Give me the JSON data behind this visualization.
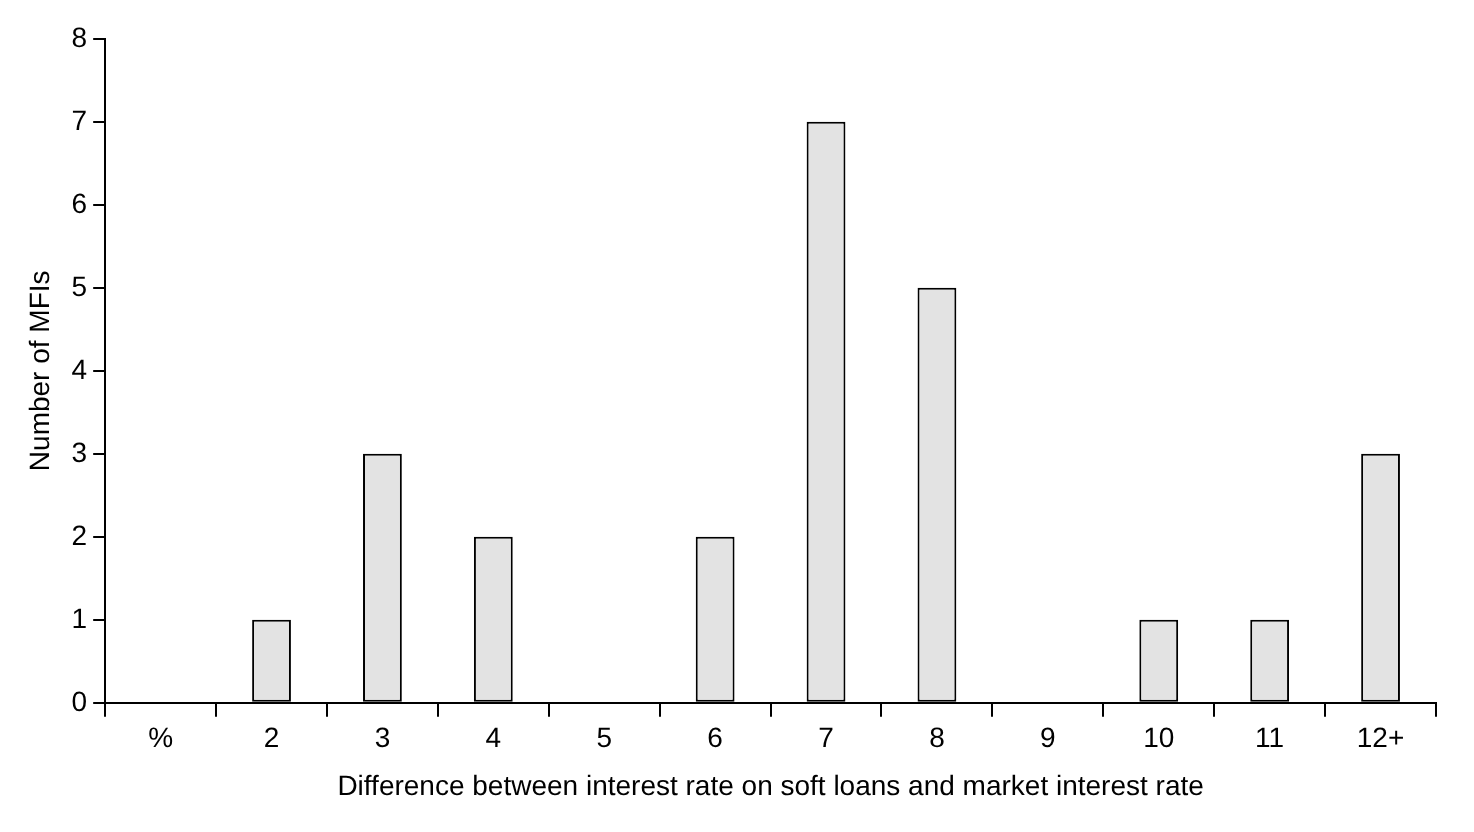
{
  "chart_data": {
    "type": "bar",
    "xlabel": "Difference between interest rate on soft loans and market interest rate",
    "ylabel": "Number of MFIs",
    "categories": [
      "%",
      "2",
      "3",
      "4",
      "5",
      "6",
      "7",
      "8",
      "9",
      "10",
      "11",
      "12+"
    ],
    "values": [
      0,
      1,
      3,
      2,
      0,
      2,
      7,
      5,
      0,
      1,
      1,
      3
    ],
    "color": "#e3e3e3",
    "ylim": [
      0,
      8
    ],
    "yticks": [
      0,
      1,
      2,
      3,
      4,
      5,
      6,
      7,
      8
    ],
    "grid": false,
    "legend": false
  }
}
